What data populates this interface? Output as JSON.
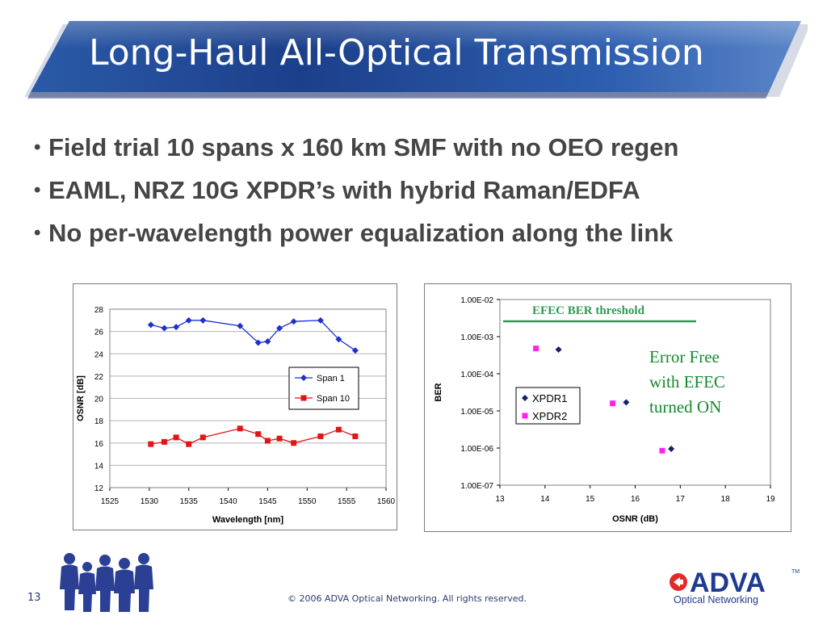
{
  "slide": {
    "title": "Long-Haul All-Optical Transmission",
    "bullets": [
      "Field trial 10 spans x 160 km SMF with no OEO regen",
      "EAML, NRZ 10G XPDR’s with hybrid Raman/EDFA",
      "No per-wavelength power equalization along the link"
    ],
    "page_number": "13",
    "copyright": "© 2006 ADVA Optical Networking. All rights reserved.",
    "logo": {
      "name": "ADVA",
      "tm": "TM",
      "tagline": "Optical Networking",
      "colors": {
        "brand": "#1f3a8f",
        "accent": "#e22a2a"
      }
    },
    "colors": {
      "banner_dark": "#1c3f8a",
      "banner_light": "#3b69b8",
      "text_bullet": "#454545"
    }
  },
  "chart_data": [
    {
      "type": "line",
      "title": "",
      "xlabel": "Wavelength [nm]",
      "ylabel": "OSNR [dB]",
      "xlim": [
        1525,
        1560
      ],
      "ylim": [
        12,
        28
      ],
      "xticks": [
        1525,
        1530,
        1535,
        1540,
        1545,
        1550,
        1555,
        1560
      ],
      "yticks": [
        12,
        14,
        16,
        18,
        20,
        22,
        24,
        26,
        28
      ],
      "grid": true,
      "legend": "right",
      "series": [
        {
          "name": "Span 1",
          "color": "#1f2fd0",
          "marker": "diamond",
          "x": [
            1530.2,
            1531.9,
            1533.4,
            1535.0,
            1536.8,
            1541.5,
            1543.8,
            1545.0,
            1546.5,
            1548.3,
            1551.7,
            1554.0,
            1556.1
          ],
          "y": [
            26.6,
            26.3,
            26.4,
            27.0,
            27.0,
            26.5,
            25.0,
            25.1,
            26.3,
            26.9,
            27.0,
            25.3,
            24.3
          ]
        },
        {
          "name": "Span 10",
          "color": "#e01515",
          "marker": "square",
          "x": [
            1530.2,
            1531.9,
            1533.4,
            1535.0,
            1536.8,
            1541.5,
            1543.8,
            1545.0,
            1546.5,
            1548.3,
            1551.7,
            1554.0,
            1556.1
          ],
          "y": [
            15.9,
            16.1,
            16.5,
            15.9,
            16.5,
            17.3,
            16.8,
            16.2,
            16.4,
            16.0,
            16.6,
            17.2,
            16.6
          ]
        }
      ]
    },
    {
      "type": "scatter",
      "title": "",
      "xlabel": "OSNR (dB)",
      "ylabel": "BER",
      "xlim": [
        13,
        19
      ],
      "ylim": [
        1e-07,
        0.01
      ],
      "yscale": "log",
      "xticks": [
        13,
        14,
        15,
        16,
        17,
        18,
        19
      ],
      "ytick_labels": [
        "1.00E-02",
        "1.00E-03",
        "1.00E-04",
        "1.00E-05",
        "1.00E-06",
        "1.00E-07"
      ],
      "grid": false,
      "legend": "center-left",
      "series": [
        {
          "name": "XPDR1",
          "color": "#17206b",
          "marker": "diamond",
          "x": [
            14.3,
            15.8,
            16.8
          ],
          "y": [
            0.00045,
            1.7e-05,
            9.5e-07
          ]
        },
        {
          "name": "XPDR2",
          "color": "#ff22ee",
          "marker": "square",
          "x": [
            13.8,
            15.5,
            16.6
          ],
          "y": [
            0.00048,
            1.6e-05,
            8.5e-07
          ]
        }
      ],
      "annotations": {
        "threshold_label": "EFEC BER threshold",
        "threshold_color": "#2e9a55",
        "error_free_lines": [
          "Error Free",
          "with EFEC",
          "turned ON"
        ],
        "error_free_color": "#148a2c"
      }
    }
  ]
}
